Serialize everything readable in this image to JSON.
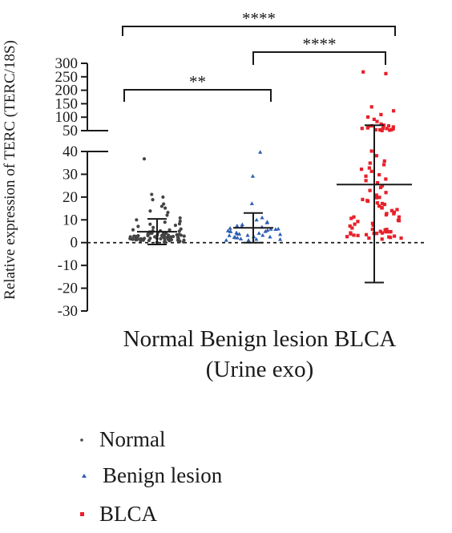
{
  "chart_data": {
    "type": "scatter",
    "title": "",
    "ylabel": "Relative expression of TERC (TERC/18S)",
    "xlabel": "(Urine exo)",
    "categories": [
      "Normal",
      "Benign lesion",
      "BLCA"
    ],
    "y_axis": {
      "broken": true,
      "lower_segment": {
        "ylim": [
          -30,
          40
        ],
        "ticks": [
          "40",
          "30",
          "20",
          "10",
          "0",
          "-10",
          "-20",
          "-30"
        ]
      },
      "upper_segment": {
        "ylim": [
          50,
          300
        ],
        "ticks": [
          "300",
          "250",
          "200",
          "150",
          "100",
          "50"
        ]
      }
    },
    "reference_line_y": 0,
    "series": [
      {
        "name": "Normal",
        "marker": "dot",
        "color": "#444444",
        "mean": 4.8,
        "sd_low": -0.8,
        "sd_high": 10.4,
        "values": [
          37,
          21,
          20,
          19,
          17,
          16,
          15,
          14,
          13,
          12,
          11,
          10,
          9.5,
          9,
          8.5,
          8,
          7.5,
          7,
          6.5,
          6,
          5.8,
          5.5,
          5.2,
          5,
          4.8,
          4.6,
          4.4,
          4.2,
          4,
          3.9,
          3.8,
          3.7,
          3.6,
          3.5,
          3.4,
          3.3,
          3.2,
          3.1,
          3,
          3,
          2.9,
          2.9,
          2.8,
          2.8,
          2.7,
          2.7,
          2.6,
          2.6,
          2.5,
          2.5,
          2.4,
          2.4,
          2.3,
          2.3,
          2.2,
          2.2,
          2.1,
          2.1,
          2,
          2,
          1.9,
          1.9,
          1.8,
          1.8,
          1.7,
          1.7,
          1.6,
          1.6,
          1.5,
          1.5,
          1.4,
          1.4,
          1.3,
          1.3,
          1.2,
          1.2,
          1.1,
          1.1,
          1,
          1,
          0.9,
          0.8,
          0.7,
          0.6,
          0.5,
          0.4,
          0.3,
          0.2
        ]
      },
      {
        "name": "Benign lesion",
        "marker": "triangle",
        "color": "#2f5fb3",
        "mean": 6.5,
        "sd_low": 0,
        "sd_high": 13,
        "values": [
          40,
          29,
          17,
          11,
          10,
          9,
          8.5,
          8,
          7.5,
          7,
          6.8,
          6.5,
          6.2,
          6,
          5.8,
          5.5,
          5.2,
          5,
          4.8,
          4.6,
          4.4,
          4.2,
          4,
          3.8,
          3.6,
          3.4,
          3.2,
          3,
          2.8,
          2.6,
          2.4,
          2.2,
          2,
          1.8,
          1.5,
          1.2,
          1,
          0.8,
          0.5
        ]
      },
      {
        "name": "BLCA",
        "marker": "square",
        "color": "#e8202a",
        "mean": 25.5,
        "sd_low": -17.5,
        "sd_high": 70,
        "values": [
          270,
          263,
          140,
          125,
          110,
          100,
          92,
          85,
          75,
          72,
          70,
          68,
          66,
          64,
          62,
          60,
          58,
          57,
          56,
          55,
          54,
          53,
          52,
          51,
          50,
          40,
          38,
          36,
          35,
          34,
          33,
          32,
          31,
          30,
          29,
          28,
          27,
          26,
          25,
          24,
          23,
          22,
          21,
          20,
          19.5,
          19,
          18.5,
          18,
          17.5,
          17,
          16.5,
          16,
          15.5,
          15,
          14.5,
          14,
          13.5,
          13,
          12.5,
          12,
          11.5,
          11,
          10.5,
          10,
          9.5,
          9,
          8.5,
          8,
          7.5,
          7,
          6.5,
          6,
          5.8,
          5.5,
          5.2,
          5,
          4.8,
          4.6,
          4.4,
          4.2,
          4,
          3.8,
          3.6,
          3.4,
          3.2,
          3,
          2.8,
          2.6,
          2.4,
          2.2,
          2,
          1.8,
          1.5
        ]
      }
    ],
    "significance": [
      {
        "from": "Normal",
        "to": "Benign lesion",
        "label": "**"
      },
      {
        "from": "Benign lesion",
        "to": "BLCA",
        "label": "****"
      },
      {
        "from": "Normal",
        "to": "BLCA",
        "label": "****"
      }
    ],
    "legend": {
      "position": "bottom-left",
      "entries": [
        {
          "label": "Normal",
          "marker": "dot",
          "color": "#444444"
        },
        {
          "label": "Benign lesion",
          "marker": "triangle",
          "color": "#2f5fb3"
        },
        {
          "label": "BLCA",
          "marker": "square",
          "color": "#e8202a"
        }
      ]
    }
  }
}
